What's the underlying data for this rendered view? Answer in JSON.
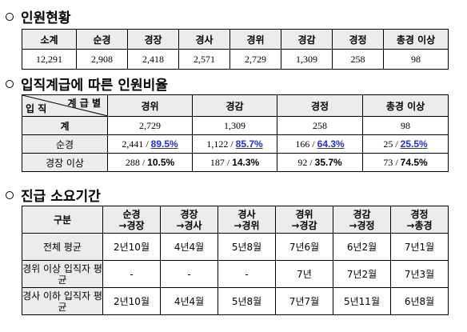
{
  "section1": {
    "title": "인원현황",
    "headers": [
      "소계",
      "순경",
      "경장",
      "경사",
      "경위",
      "경감",
      "경정",
      "총경 이상"
    ],
    "values": [
      "12,291",
      "2,908",
      "2,418",
      "2,571",
      "2,729",
      "1,309",
      "258",
      "98"
    ]
  },
  "section2": {
    "title": "입직계급에 따른 인원비율",
    "corner_top": "계 급 별",
    "corner_bottom": "입 직",
    "headers": [
      "경위",
      "경감",
      "경정",
      "총경 이상"
    ],
    "rows": [
      {
        "label": "계",
        "cells": [
          {
            "count": "2,729",
            "pct": ""
          },
          {
            "count": "1,309",
            "pct": ""
          },
          {
            "count": "258",
            "pct": ""
          },
          {
            "count": "98",
            "pct": ""
          }
        ]
      },
      {
        "label": "순경",
        "cells": [
          {
            "count": "2,441",
            "pct": "89.5%"
          },
          {
            "count": "1,122",
            "pct": "85.7%"
          },
          {
            "count": "166",
            "pct": "64.3%"
          },
          {
            "count": "25",
            "pct": "25.5%"
          }
        ]
      },
      {
        "label": "경장 이상",
        "cells": [
          {
            "count": "288",
            "pct": "10.5%"
          },
          {
            "count": "187",
            "pct": "14.3%"
          },
          {
            "count": "92",
            "pct": "35.7%"
          },
          {
            "count": "73",
            "pct": "74.5%"
          }
        ]
      }
    ],
    "separator": " / "
  },
  "section3": {
    "title": "진급 소요기간",
    "header_label": "구분",
    "headers": [
      {
        "from": "순경",
        "to": "→경장"
      },
      {
        "from": "경장",
        "to": "→경사"
      },
      {
        "from": "경사",
        "to": "→경위"
      },
      {
        "from": "경위",
        "to": "→경감"
      },
      {
        "from": "경감",
        "to": "→경정"
      },
      {
        "from": "경정",
        "to": "→총경"
      }
    ],
    "rows": [
      {
        "label": "전체 평균",
        "cells": [
          "2년10월",
          "4년4월",
          "5년8월",
          "7년6월",
          "6년2월",
          "7년1월"
        ]
      },
      {
        "label": "경위 이상 입직자 평균",
        "cells": [
          "-",
          "-",
          "-",
          "7년",
          "7년2월",
          "7년3월"
        ]
      },
      {
        "label": "경사 이하 입직자 평균",
        "cells": [
          "2년10월",
          "4년4월",
          "5년8월",
          "7년7월",
          "5년11월",
          "6년8월"
        ]
      }
    ]
  }
}
